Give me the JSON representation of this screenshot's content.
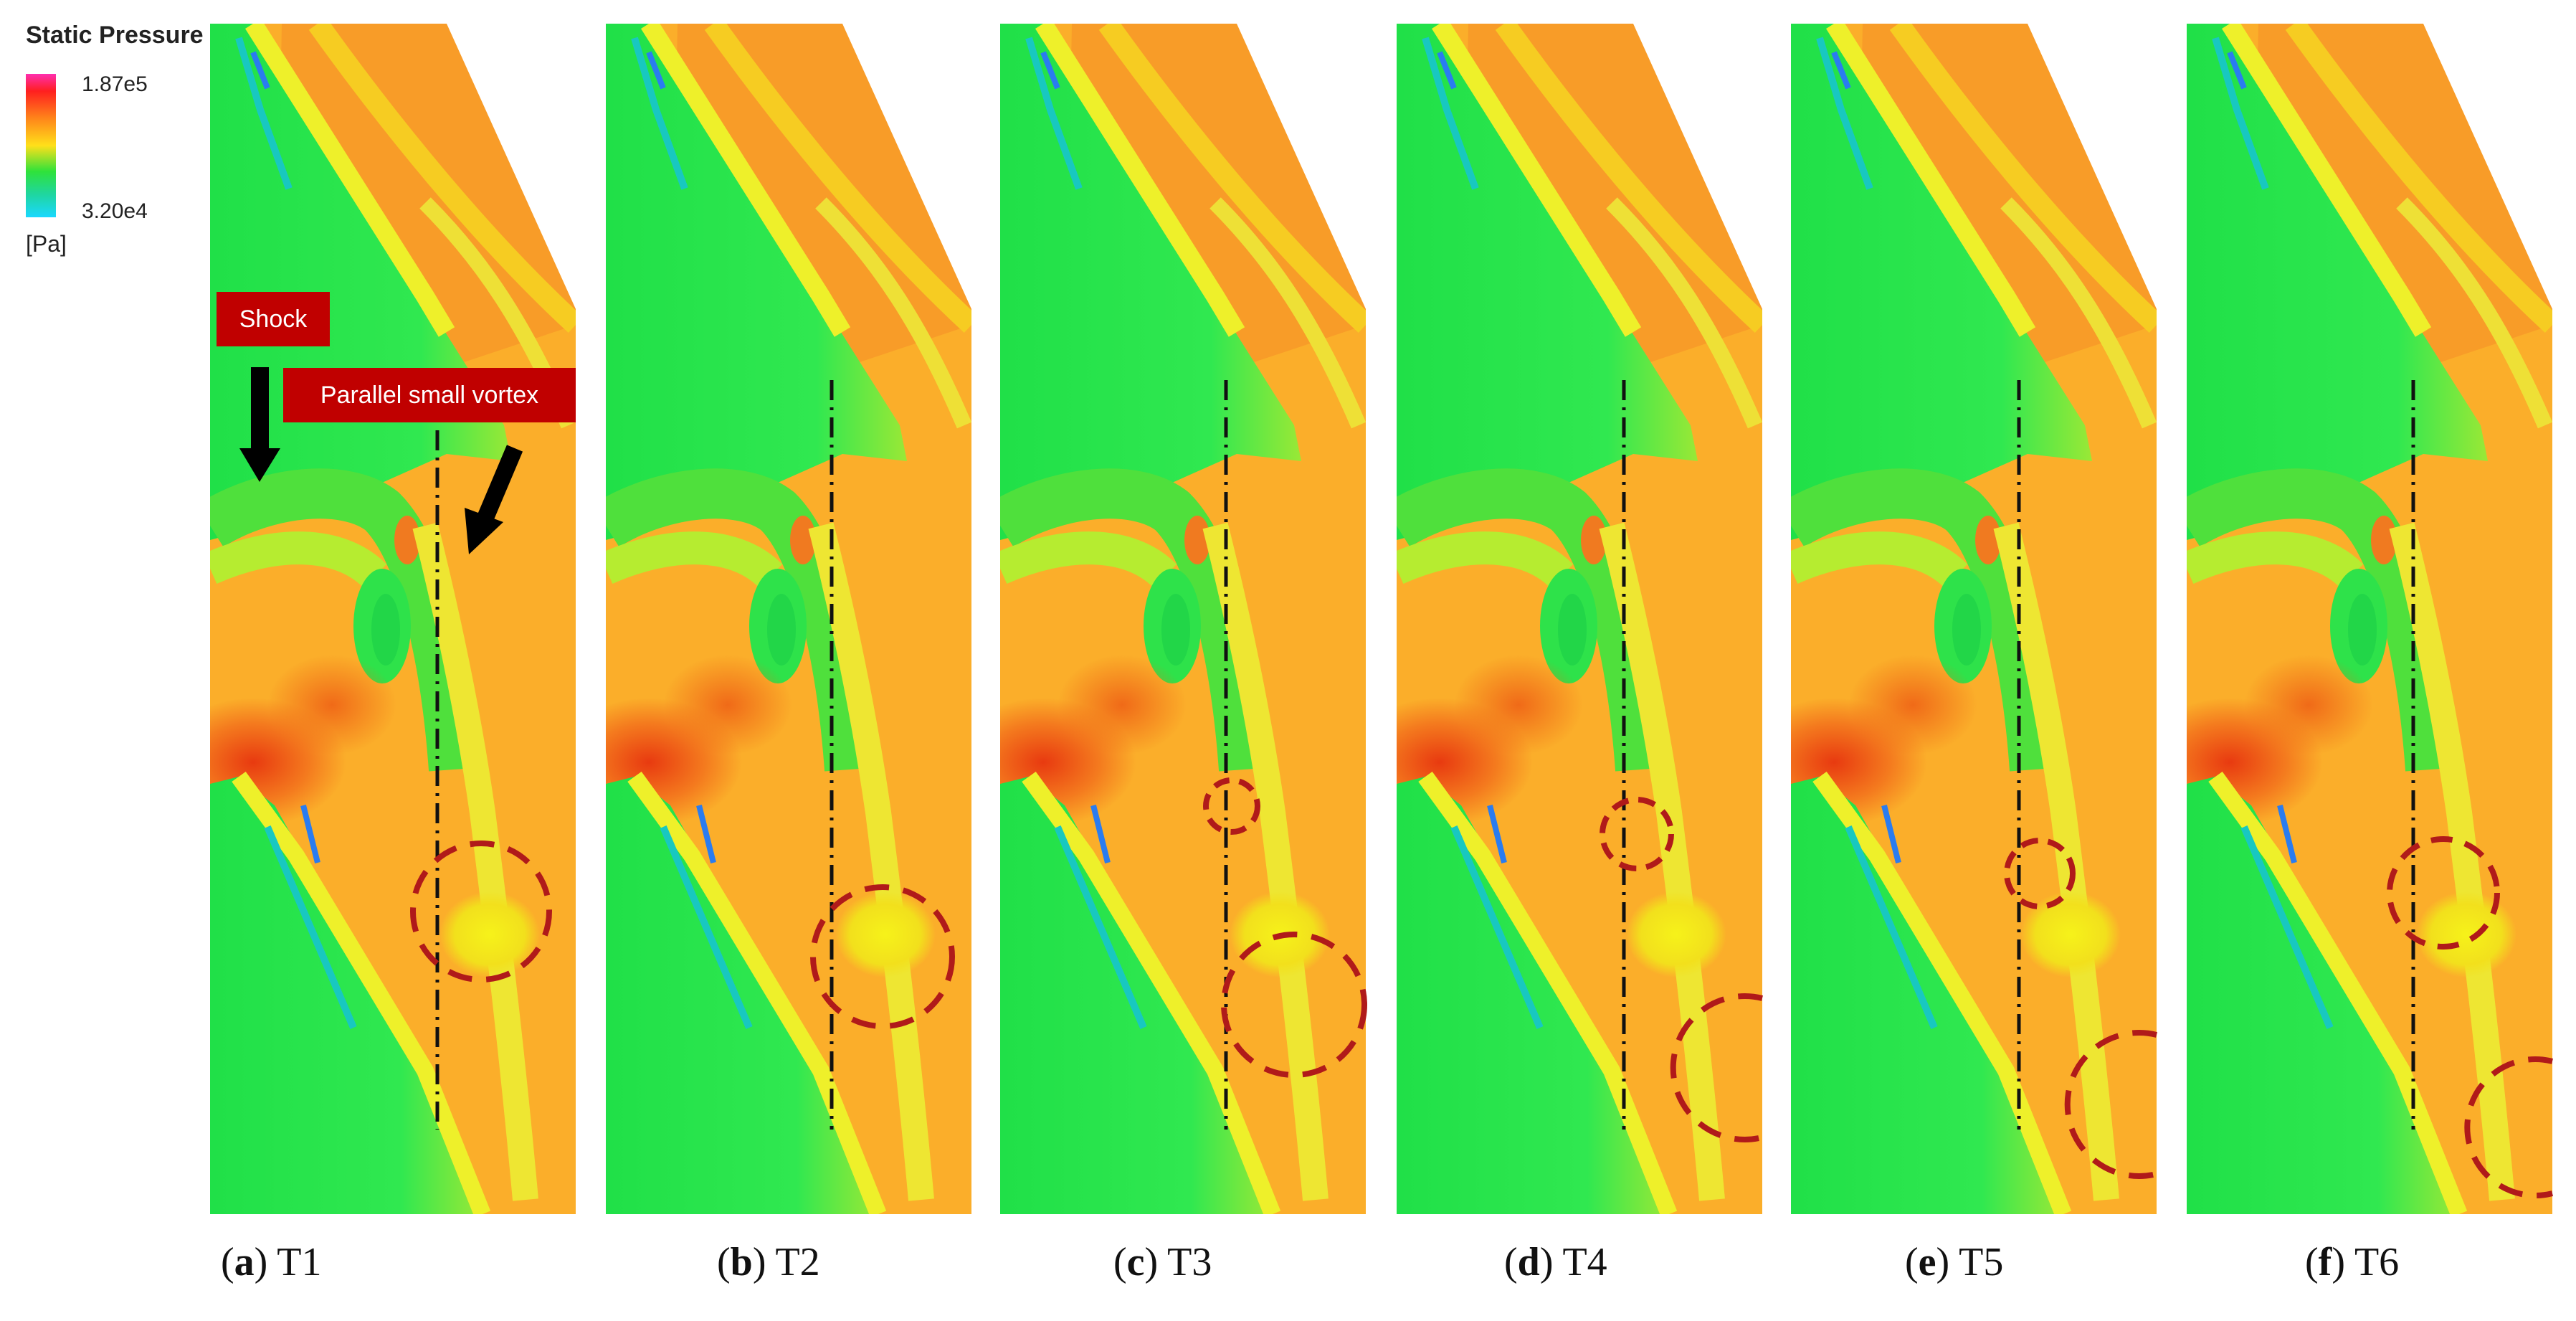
{
  "legend": {
    "title": "Static Pressure",
    "max_label": "1.87e5",
    "min_label": "3.20e4",
    "unit": "[Pa]"
  },
  "annotations": {
    "shock": "Shock",
    "vortex": "Parallel small vortex"
  },
  "panels": [
    {
      "letter": "a",
      "label": "T1"
    },
    {
      "letter": "b",
      "label": "T2"
    },
    {
      "letter": "c",
      "label": "T3"
    },
    {
      "letter": "d",
      "label": "T4"
    },
    {
      "letter": "e",
      "label": "T5"
    },
    {
      "letter": "f",
      "label": "T6"
    }
  ],
  "colors": {
    "blade": "#1ee84a",
    "core": "#18c0c8",
    "flow": "#fbb028",
    "hot": "#f06018",
    "highlight": "#f4e418",
    "marker": "#b01a1a"
  }
}
